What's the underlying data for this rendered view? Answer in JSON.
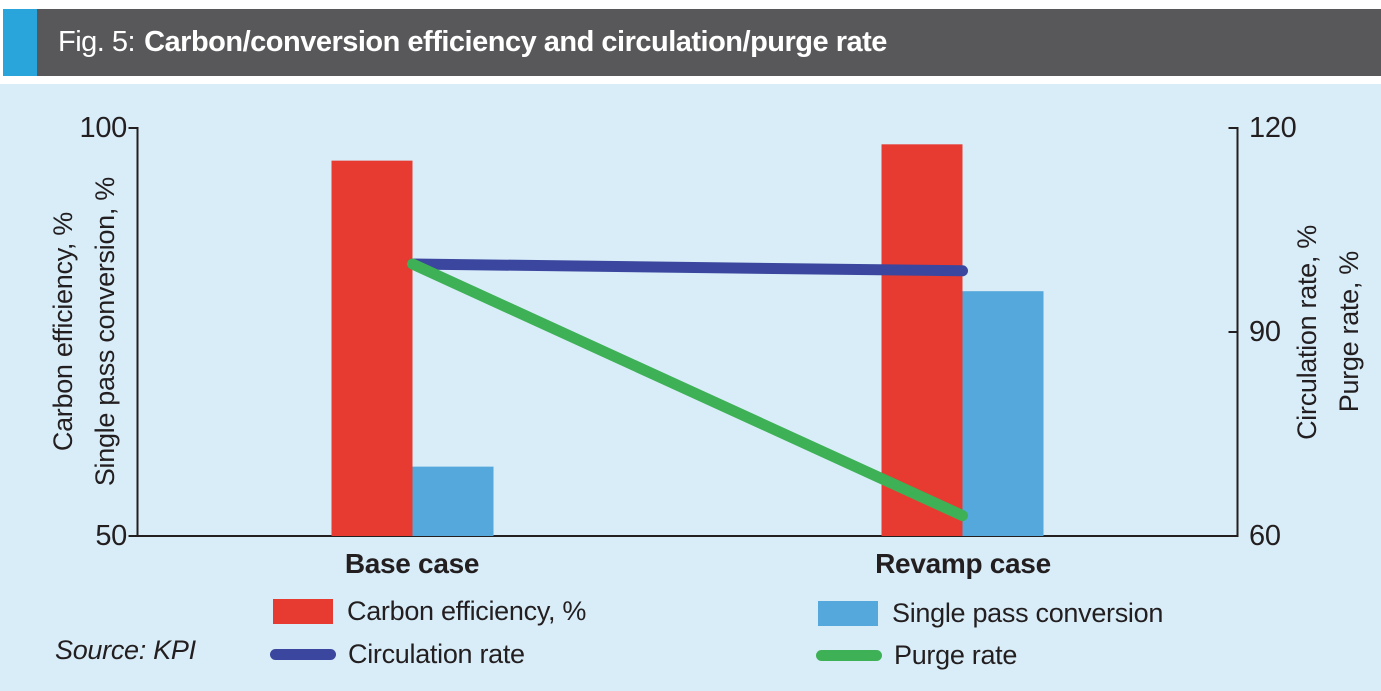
{
  "figure": {
    "label_prefix": "Fig. 5:",
    "title": "Carbon/conversion efficiency and circulation/purge rate",
    "source": "Source: KPI"
  },
  "colors": {
    "accent": "#29a5dc",
    "title_bar": "#58585a",
    "title_text": "#ffffff",
    "panel_bg": "#d9edf9",
    "ink": "#231f20",
    "red": "#e73a30",
    "blue": "#54a8db",
    "navy": "#3b479e",
    "green": "#3eb156"
  },
  "chart_data": {
    "type": "combo (bar + line)",
    "categories": [
      "Base case",
      "Revamp case"
    ],
    "bar_series": [
      {
        "name": "Carbon efficiency, %",
        "axis": "left",
        "color_key": "red",
        "values": [
          96,
          98
        ]
      },
      {
        "name": "Single pass conversion",
        "axis": "left",
        "color_key": "blue",
        "values": [
          58.5,
          80
        ]
      }
    ],
    "line_series": [
      {
        "name": "Circulation rate",
        "axis": "right",
        "color_key": "navy",
        "values": [
          100,
          99
        ]
      },
      {
        "name": "Purge rate",
        "axis": "right",
        "color_key": "green",
        "values": [
          100,
          63
        ]
      }
    ],
    "left_axis": {
      "title_lines": [
        "Carbon efficiency, %",
        "Single pass conversion, %"
      ],
      "min": 50,
      "max": 100,
      "ticks": [
        100,
        50
      ]
    },
    "right_axis": {
      "title_lines": [
        "Circulation rate, %",
        "Purge rate, %"
      ],
      "min": 60,
      "max": 120,
      "ticks": [
        120,
        90,
        60
      ]
    },
    "grid": false,
    "legend_position": "bottom"
  }
}
